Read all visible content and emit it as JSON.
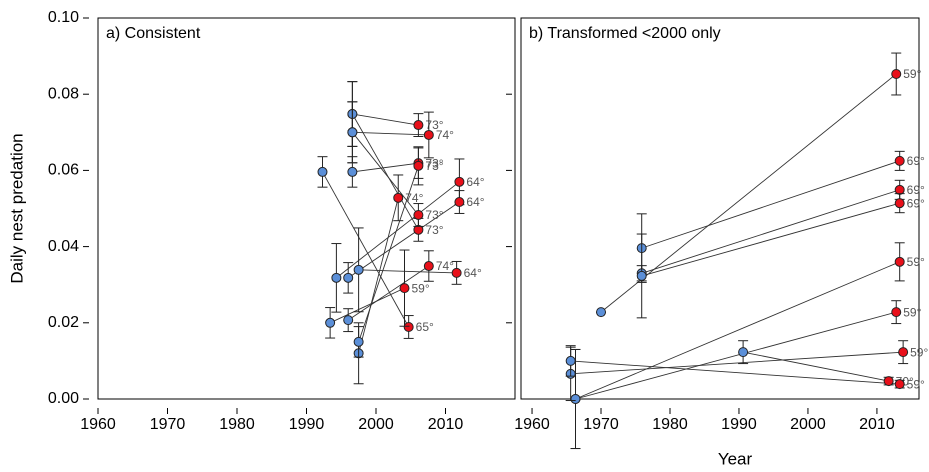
{
  "chart_data": [
    {
      "type": "paired",
      "title": "a) Consistent",
      "ylabel": "Daily nest predation",
      "xlim": [
        1960,
        2020
      ],
      "ylim": [
        0,
        0.1
      ],
      "xticks": [
        1960,
        1970,
        1980,
        1990,
        2000,
        2010
      ],
      "yticks": [
        {
          "value": 0,
          "label": "0.00"
        },
        {
          "value": 0.02,
          "label": "0.02"
        },
        {
          "value": 0.04,
          "label": "0.04"
        },
        {
          "value": 0.06,
          "label": "0.06"
        },
        {
          "value": 0.08,
          "label": "0.08"
        },
        {
          "value": 0.1,
          "label": "0.10"
        }
      ],
      "old_color": "#5b8fd8",
      "new_color": "#e8101a",
      "pairs": [
        {
          "old": {
            "x": 1996.6,
            "y": 0.0748,
            "err": 0.0085
          },
          "new": {
            "x": 2006.1,
            "y": 0.0719,
            "err": 0.003,
            "label": "73°"
          }
        },
        {
          "old": {
            "x": 1996.6,
            "y": 0.0748,
            "err": 0.0085
          },
          "new": {
            "x": 2006.1,
            "y": 0.0444,
            "err": 0.003,
            "label": "73°"
          }
        },
        {
          "old": {
            "x": 1996.6,
            "y": 0.07,
            "err": 0.008
          },
          "new": {
            "x": 2007.6,
            "y": 0.0693,
            "err": 0.006,
            "label": "74°"
          }
        },
        {
          "old": {
            "x": 1996.6,
            "y": 0.07,
            "err": 0.008
          },
          "new": {
            "x": 2006.1,
            "y": 0.0483,
            "err": 0.003,
            "label": "73°"
          }
        },
        {
          "old": {
            "x": 1996.6,
            "y": 0.0596,
            "err": 0.004
          },
          "new": {
            "x": 2006.1,
            "y": 0.0619,
            "err": 0.004,
            "label": "73°"
          }
        },
        {
          "old": {
            "x": 1992.3,
            "y": 0.0596,
            "err": 0.004
          },
          "new": {
            "x": 2004.7,
            "y": 0.0189,
            "err": 0.003,
            "label": "65°"
          }
        },
        {
          "old": {
            "x": 1997.5,
            "y": 0.012,
            "err": 0.008
          },
          "new": {
            "x": 2003.2,
            "y": 0.0528,
            "err": 0.006,
            "label": "74°"
          }
        },
        {
          "old": {
            "x": 1997.5,
            "y": 0.015,
            "err": 0.004
          },
          "new": {
            "x": 2006.1,
            "y": 0.0612,
            "err": 0.005,
            "label": "73°"
          }
        },
        {
          "old": {
            "x": 1994.3,
            "y": 0.0318,
            "err": 0.009
          },
          "new": {
            "x": 2012,
            "y": 0.057,
            "err": 0.006,
            "label": "64°"
          }
        },
        {
          "old": {
            "x": 1996,
            "y": 0.0318,
            "err": 0.004
          },
          "new": {
            "x": 2012,
            "y": 0.0517,
            "err": 0.003,
            "label": "64°"
          }
        },
        {
          "old": {
            "x": 1996,
            "y": 0.0207,
            "err": 0.003
          },
          "new": {
            "x": 2007.6,
            "y": 0.0349,
            "err": 0.004,
            "label": "74°"
          }
        },
        {
          "old": {
            "x": 1993.4,
            "y": 0.02,
            "err": 0.004
          },
          "new": {
            "x": 2004.1,
            "y": 0.0291,
            "err": 0.01,
            "label": "59°"
          }
        },
        {
          "old": {
            "x": 1997.5,
            "y": 0.0339,
            "err": 0.011
          },
          "new": {
            "x": 2011.6,
            "y": 0.0331,
            "err": 0.003,
            "label": "64°"
          }
        }
      ]
    },
    {
      "type": "paired",
      "title": "b) Transformed <2000 only",
      "xlabel": "Year",
      "xlim": [
        1958.4,
        2016.1
      ],
      "ylim": [
        0,
        0.1
      ],
      "xticks": [
        1960,
        1970,
        1980,
        1990,
        2000,
        2010
      ],
      "old_color": "#5b8fd8",
      "new_color": "#e8101a",
      "pairs": [
        {
          "old": {
            "x": 1970,
            "y": 0.0228,
            "err": 0
          },
          "new": {
            "x": 2012.8,
            "y": 0.0853,
            "err": 0.0055,
            "label": "59°"
          }
        },
        {
          "old": {
            "x": 1975.9,
            "y": 0.0396,
            "err": 0.009
          },
          "new": {
            "x": 2013.3,
            "y": 0.0625,
            "err": 0.0025,
            "label": "69°"
          }
        },
        {
          "old": {
            "x": 1975.9,
            "y": 0.033,
            "err": 0.002
          },
          "new": {
            "x": 2013.3,
            "y": 0.0549,
            "err": 0.0025,
            "label": "69°"
          }
        },
        {
          "old": {
            "x": 1975.9,
            "y": 0.0323,
            "err": 0.011
          },
          "new": {
            "x": 2013.3,
            "y": 0.0514,
            "err": 0.0025,
            "label": "69°"
          }
        },
        {
          "old": {
            "x": 1966.3,
            "y": 0,
            "err": 0.013
          },
          "new": {
            "x": 2013.3,
            "y": 0.036,
            "err": 0.005,
            "label": "59°"
          }
        },
        {
          "old": {
            "x": 1966.3,
            "y": 0,
            "err": 0.013
          },
          "new": {
            "x": 2012.8,
            "y": 0.0228,
            "err": 0.003,
            "label": "59°"
          }
        },
        {
          "old": {
            "x": 1965.6,
            "y": 0.0066,
            "err": 0.007
          },
          "new": {
            "x": 2013.8,
            "y": 0.0123,
            "err": 0.003,
            "label": "59°"
          }
        },
        {
          "old": {
            "x": 1990.6,
            "y": 0.0123,
            "err": 0.003
          },
          "new": {
            "x": 2011.7,
            "y": 0.0047,
            "err": 0.001,
            "label": "70°"
          }
        },
        {
          "old": {
            "x": 1965.6,
            "y": 0.01,
            "err": 0.004
          },
          "new": {
            "x": 2013.3,
            "y": 0.0039,
            "err": 0.001,
            "label": "59°"
          }
        }
      ]
    }
  ]
}
